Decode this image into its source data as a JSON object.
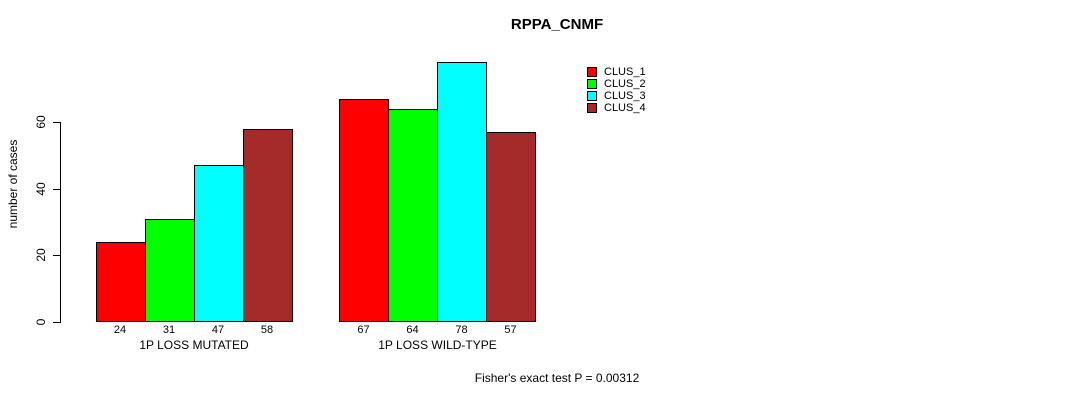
{
  "chart_data": {
    "type": "bar",
    "title": "RPPA_CNMF",
    "xlabel": "",
    "ylabel": "number of cases",
    "categories": [
      "1P LOSS MUTATED",
      "1P LOSS WILD-TYPE"
    ],
    "series": [
      {
        "name": "CLUS_1",
        "color": "#FF0000",
        "values": [
          24,
          67
        ]
      },
      {
        "name": "CLUS_2",
        "color": "#00FF00",
        "values": [
          31,
          64
        ]
      },
      {
        "name": "CLUS_3",
        "color": "#00FFFF",
        "values": [
          47,
          78
        ]
      },
      {
        "name": "CLUS_4",
        "color": "#A52A2A",
        "values": [
          58,
          57
        ]
      }
    ],
    "yticks": [
      0,
      20,
      40,
      60
    ],
    "ylim": [
      0,
      78
    ],
    "bar_value_labels": true,
    "grid": false,
    "legend_position": "top-right",
    "legend_entries": [
      "CLUS_1",
      "CLUS_2",
      "CLUS_3",
      "CLUS_4"
    ],
    "annotation": "Fisher's exact test P = 0.00312"
  },
  "colors": {
    "background": "#FFFFFF",
    "axis": "#000000",
    "text": "#000000",
    "bar_border": "#000000",
    "clus_1": "#FF0000",
    "clus_2": "#00FF00",
    "clus_3": "#00FFFF",
    "clus_4": "#A52A2A"
  }
}
